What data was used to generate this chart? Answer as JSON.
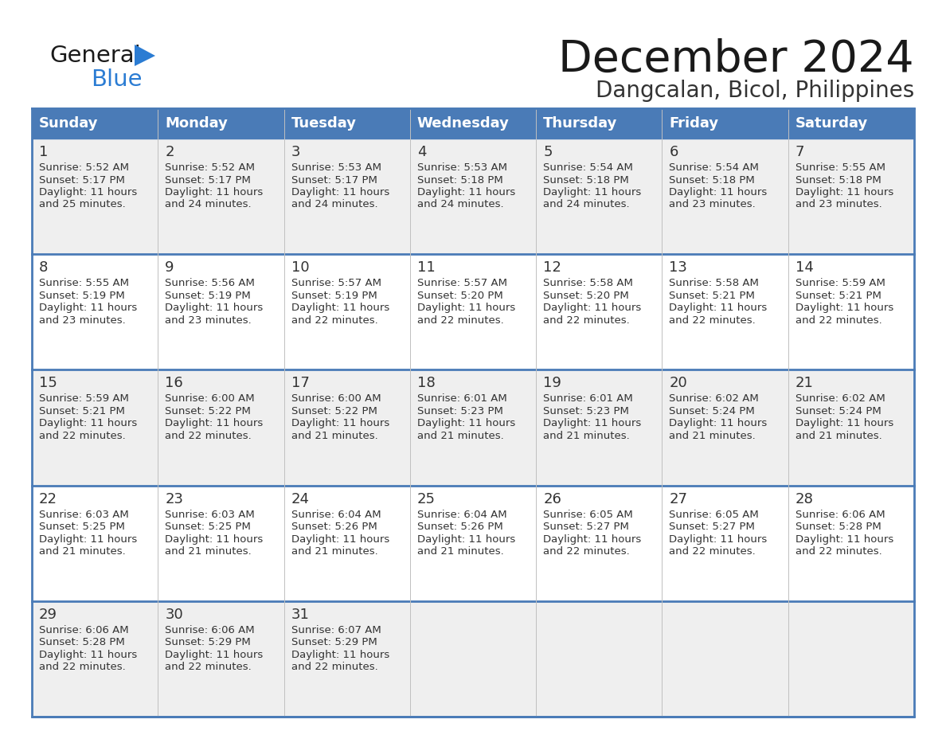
{
  "title": "December 2024",
  "subtitle": "Dangcalan, Bicol, Philippines",
  "header_color": "#4A7BB7",
  "header_text_color": "#FFFFFF",
  "cell_bg_even": "#EFEFEF",
  "cell_bg_odd": "#FFFFFF",
  "day_names": [
    "Sunday",
    "Monday",
    "Tuesday",
    "Wednesday",
    "Thursday",
    "Friday",
    "Saturday"
  ],
  "days": [
    {
      "day": 1,
      "col": 0,
      "row": 0,
      "sunrise": "5:52 AM",
      "sunset": "5:17 PM",
      "daylight": "11 hours and 25 minutes."
    },
    {
      "day": 2,
      "col": 1,
      "row": 0,
      "sunrise": "5:52 AM",
      "sunset": "5:17 PM",
      "daylight": "11 hours and 24 minutes."
    },
    {
      "day": 3,
      "col": 2,
      "row": 0,
      "sunrise": "5:53 AM",
      "sunset": "5:17 PM",
      "daylight": "11 hours and 24 minutes."
    },
    {
      "day": 4,
      "col": 3,
      "row": 0,
      "sunrise": "5:53 AM",
      "sunset": "5:18 PM",
      "daylight": "11 hours and 24 minutes."
    },
    {
      "day": 5,
      "col": 4,
      "row": 0,
      "sunrise": "5:54 AM",
      "sunset": "5:18 PM",
      "daylight": "11 hours and 24 minutes."
    },
    {
      "day": 6,
      "col": 5,
      "row": 0,
      "sunrise": "5:54 AM",
      "sunset": "5:18 PM",
      "daylight": "11 hours and 23 minutes."
    },
    {
      "day": 7,
      "col": 6,
      "row": 0,
      "sunrise": "5:55 AM",
      "sunset": "5:18 PM",
      "daylight": "11 hours and 23 minutes."
    },
    {
      "day": 8,
      "col": 0,
      "row": 1,
      "sunrise": "5:55 AM",
      "sunset": "5:19 PM",
      "daylight": "11 hours and 23 minutes."
    },
    {
      "day": 9,
      "col": 1,
      "row": 1,
      "sunrise": "5:56 AM",
      "sunset": "5:19 PM",
      "daylight": "11 hours and 23 minutes."
    },
    {
      "day": 10,
      "col": 2,
      "row": 1,
      "sunrise": "5:57 AM",
      "sunset": "5:19 PM",
      "daylight": "11 hours and 22 minutes."
    },
    {
      "day": 11,
      "col": 3,
      "row": 1,
      "sunrise": "5:57 AM",
      "sunset": "5:20 PM",
      "daylight": "11 hours and 22 minutes."
    },
    {
      "day": 12,
      "col": 4,
      "row": 1,
      "sunrise": "5:58 AM",
      "sunset": "5:20 PM",
      "daylight": "11 hours and 22 minutes."
    },
    {
      "day": 13,
      "col": 5,
      "row": 1,
      "sunrise": "5:58 AM",
      "sunset": "5:21 PM",
      "daylight": "11 hours and 22 minutes."
    },
    {
      "day": 14,
      "col": 6,
      "row": 1,
      "sunrise": "5:59 AM",
      "sunset": "5:21 PM",
      "daylight": "11 hours and 22 minutes."
    },
    {
      "day": 15,
      "col": 0,
      "row": 2,
      "sunrise": "5:59 AM",
      "sunset": "5:21 PM",
      "daylight": "11 hours and 22 minutes."
    },
    {
      "day": 16,
      "col": 1,
      "row": 2,
      "sunrise": "6:00 AM",
      "sunset": "5:22 PM",
      "daylight": "11 hours and 22 minutes."
    },
    {
      "day": 17,
      "col": 2,
      "row": 2,
      "sunrise": "6:00 AM",
      "sunset": "5:22 PM",
      "daylight": "11 hours and 21 minutes."
    },
    {
      "day": 18,
      "col": 3,
      "row": 2,
      "sunrise": "6:01 AM",
      "sunset": "5:23 PM",
      "daylight": "11 hours and 21 minutes."
    },
    {
      "day": 19,
      "col": 4,
      "row": 2,
      "sunrise": "6:01 AM",
      "sunset": "5:23 PM",
      "daylight": "11 hours and 21 minutes."
    },
    {
      "day": 20,
      "col": 5,
      "row": 2,
      "sunrise": "6:02 AM",
      "sunset": "5:24 PM",
      "daylight": "11 hours and 21 minutes."
    },
    {
      "day": 21,
      "col": 6,
      "row": 2,
      "sunrise": "6:02 AM",
      "sunset": "5:24 PM",
      "daylight": "11 hours and 21 minutes."
    },
    {
      "day": 22,
      "col": 0,
      "row": 3,
      "sunrise": "6:03 AM",
      "sunset": "5:25 PM",
      "daylight": "11 hours and 21 minutes."
    },
    {
      "day": 23,
      "col": 1,
      "row": 3,
      "sunrise": "6:03 AM",
      "sunset": "5:25 PM",
      "daylight": "11 hours and 21 minutes."
    },
    {
      "day": 24,
      "col": 2,
      "row": 3,
      "sunrise": "6:04 AM",
      "sunset": "5:26 PM",
      "daylight": "11 hours and 21 minutes."
    },
    {
      "day": 25,
      "col": 3,
      "row": 3,
      "sunrise": "6:04 AM",
      "sunset": "5:26 PM",
      "daylight": "11 hours and 21 minutes."
    },
    {
      "day": 26,
      "col": 4,
      "row": 3,
      "sunrise": "6:05 AM",
      "sunset": "5:27 PM",
      "daylight": "11 hours and 22 minutes."
    },
    {
      "day": 27,
      "col": 5,
      "row": 3,
      "sunrise": "6:05 AM",
      "sunset": "5:27 PM",
      "daylight": "11 hours and 22 minutes."
    },
    {
      "day": 28,
      "col": 6,
      "row": 3,
      "sunrise": "6:06 AM",
      "sunset": "5:28 PM",
      "daylight": "11 hours and 22 minutes."
    },
    {
      "day": 29,
      "col": 0,
      "row": 4,
      "sunrise": "6:06 AM",
      "sunset": "5:28 PM",
      "daylight": "11 hours and 22 minutes."
    },
    {
      "day": 30,
      "col": 1,
      "row": 4,
      "sunrise": "6:06 AM",
      "sunset": "5:29 PM",
      "daylight": "11 hours and 22 minutes."
    },
    {
      "day": 31,
      "col": 2,
      "row": 4,
      "sunrise": "6:07 AM",
      "sunset": "5:29 PM",
      "daylight": "11 hours and 22 minutes."
    }
  ],
  "num_rows": 5,
  "logo_color_general": "#1a1a1a",
  "logo_color_blue": "#2B7CD3",
  "logo_triangle_color": "#2B7CD3",
  "title_color": "#1a1a1a",
  "subtitle_color": "#333333",
  "cell_text_color": "#333333",
  "row_separator_color": "#4A7BB7",
  "col_separator_color": "#C0C0C0",
  "outer_border_color": "#4A7BB7"
}
